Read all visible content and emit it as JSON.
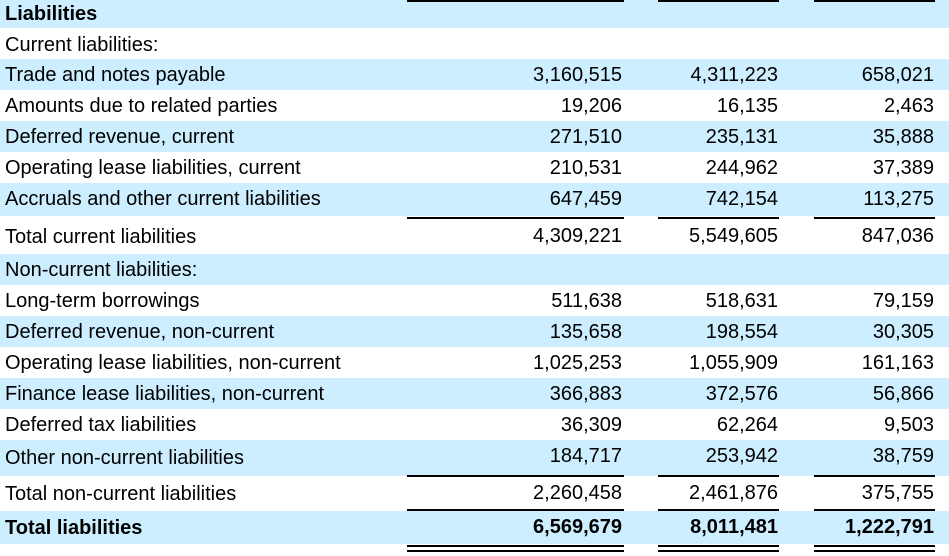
{
  "title": "Liabilities",
  "sections": {
    "current_header": "Current liabilities:",
    "noncurrent_header": "Non-current liabilities:"
  },
  "rows": [
    {
      "label": "Trade and notes payable",
      "v1": "3,160,515",
      "v2": "4,311,223",
      "v3": "658,021"
    },
    {
      "label": "Amounts due to related parties",
      "v1": "19,206",
      "v2": "16,135",
      "v3": "2,463"
    },
    {
      "label": "Deferred revenue, current",
      "v1": "271,510",
      "v2": "235,131",
      "v3": "35,888"
    },
    {
      "label": "Operating lease liabilities, current",
      "v1": "210,531",
      "v2": "244,962",
      "v3": "37,389"
    },
    {
      "label": "Accruals and other current liabilities",
      "v1": "647,459",
      "v2": "742,154",
      "v3": "113,275"
    },
    {
      "label": "Total current liabilities",
      "v1": "4,309,221",
      "v2": "5,549,605",
      "v3": "847,036"
    },
    {
      "label": "Long-term borrowings",
      "v1": "511,638",
      "v2": "518,631",
      "v3": "79,159"
    },
    {
      "label": "Deferred revenue, non-current",
      "v1": "135,658",
      "v2": "198,554",
      "v3": "30,305"
    },
    {
      "label": "Operating lease liabilities, non-current",
      "v1": "1,025,253",
      "v2": "1,055,909",
      "v3": "161,163"
    },
    {
      "label": "Finance lease liabilities, non-current",
      "v1": "366,883",
      "v2": "372,576",
      "v3": "56,866"
    },
    {
      "label": "Deferred tax liabilities",
      "v1": "36,309",
      "v2": "62,264",
      "v3": "9,503"
    },
    {
      "label": "Other non-current liabilities",
      "v1": "184,717",
      "v2": "253,942",
      "v3": "38,759"
    },
    {
      "label": "Total non-current liabilities",
      "v1": "2,260,458",
      "v2": "2,461,876",
      "v3": "375,755"
    },
    {
      "label": "Total liabilities",
      "v1": "6,569,679",
      "v2": "8,011,481",
      "v3": "1,222,791"
    }
  ]
}
